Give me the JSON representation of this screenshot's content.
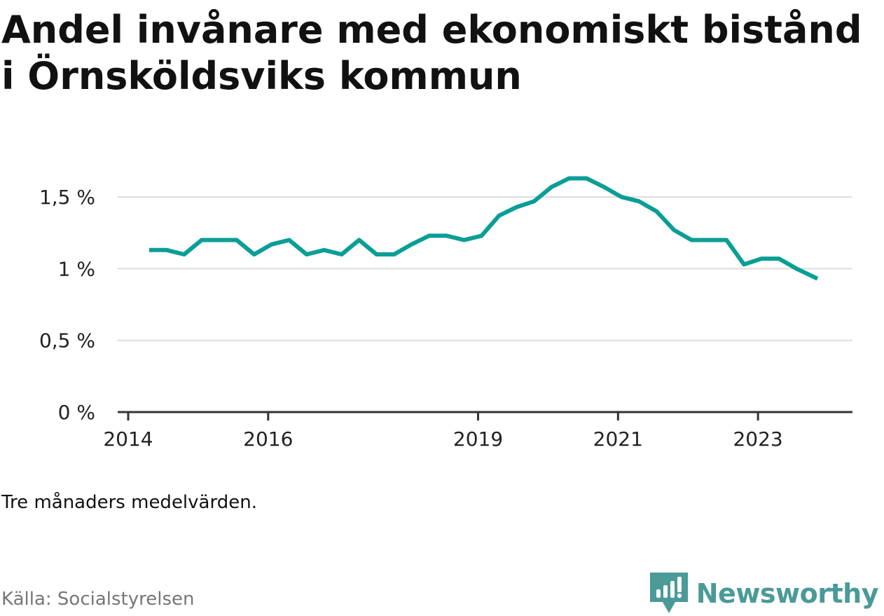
{
  "title": "Andel invånare med ekonomiskt bistånd i Örnsköldsviks kommun",
  "note": "Tre månaders medelvärden.",
  "source": "Källa: Socialstyrelsen",
  "brand": {
    "name": "Newsworthy",
    "color": "#4a9a98"
  },
  "chart_data": {
    "type": "line",
    "title": "Andel invånare med ekonomiskt bistånd i Örnsköldsviks kommun",
    "xlabel": "",
    "ylabel": "",
    "ylim": [
      0,
      1.75
    ],
    "xlim": [
      2013.85,
      2024.35
    ],
    "yticks": [
      0,
      0.5,
      1,
      1.5
    ],
    "ytick_labels": [
      "0 %",
      "0,5 %",
      "1 %",
      "1,5 %"
    ],
    "xticks": [
      2014,
      2016,
      2019,
      2021,
      2023
    ],
    "xtick_labels": [
      "2014",
      "2016",
      "2019",
      "2021",
      "2023"
    ],
    "grid": "horizontal",
    "line_color": "#0a9e96",
    "series": [
      {
        "x": [
          2014.3,
          2014.55,
          2014.8,
          2015.05,
          2015.3,
          2015.55,
          2015.8,
          2016.05,
          2016.3,
          2016.55,
          2016.8,
          2017.05,
          2017.3,
          2017.55,
          2017.8,
          2018.05,
          2018.3,
          2018.55,
          2018.8,
          2019.05,
          2019.3,
          2019.55,
          2019.8,
          2020.05,
          2020.3,
          2020.55,
          2020.8,
          2021.05,
          2021.3,
          2021.55,
          2021.8,
          2022.05,
          2022.3,
          2022.55,
          2022.8,
          2023.05,
          2023.3,
          2023.55,
          2023.85
        ],
        "values": [
          1.13,
          1.13,
          1.1,
          1.2,
          1.2,
          1.2,
          1.1,
          1.17,
          1.2,
          1.1,
          1.13,
          1.1,
          1.2,
          1.1,
          1.1,
          1.17,
          1.23,
          1.23,
          1.2,
          1.23,
          1.37,
          1.43,
          1.47,
          1.57,
          1.63,
          1.63,
          1.57,
          1.5,
          1.47,
          1.4,
          1.27,
          1.2,
          1.2,
          1.2,
          1.03,
          1.07,
          1.07,
          1.0,
          0.93
        ]
      }
    ]
  }
}
